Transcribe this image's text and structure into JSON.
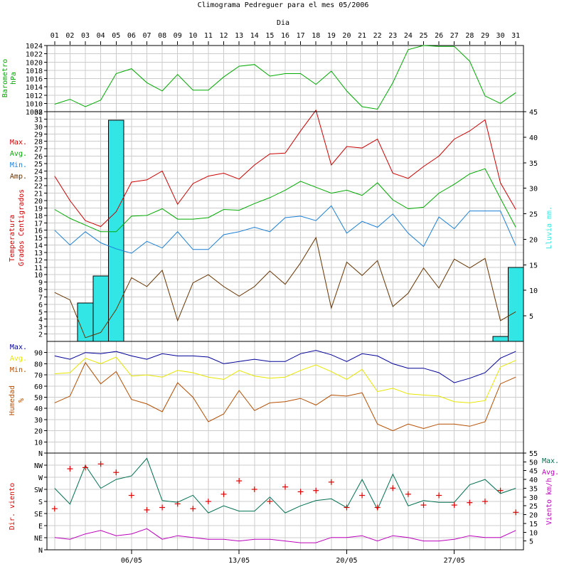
{
  "title": "Climograma Pedreguer para el mes 05/2006",
  "top_axis_label": "Dia",
  "days": [
    "01",
    "02",
    "03",
    "04",
    "05",
    "06",
    "07",
    "08",
    "09",
    "10",
    "11",
    "12",
    "13",
    "14",
    "15",
    "16",
    "17",
    "18",
    "19",
    "20",
    "21",
    "22",
    "23",
    "24",
    "25",
    "26",
    "27",
    "28",
    "29",
    "30",
    "31"
  ],
  "bottom_ticks": [
    {
      "label": "06/05",
      "day": 6
    },
    {
      "label": "13/05",
      "day": 13
    },
    {
      "label": "20/05",
      "day": 20
    },
    {
      "label": "27/05",
      "day": 27
    }
  ],
  "colors": {
    "grid": "#cccccc",
    "baro": "#00aa00",
    "tmax": "#cc0000",
    "tavg": "#00aa00",
    "tmin": "#1a7fd6",
    "tamp": "#663300",
    "rain": "#33e6e6",
    "hmax": "#000099",
    "havg": "#e6e600",
    "hmin": "#b34d00",
    "wmax": "#007050",
    "wavg": "#bb00bb",
    "wdir": "#dd0000"
  },
  "chart_data": [
    {
      "id": "barometer",
      "type": "line",
      "ylabel": [
        "Barometro",
        "hPa"
      ],
      "ylim": [
        1008,
        1024
      ],
      "yticks": [
        1008,
        1010,
        1012,
        1014,
        1016,
        1018,
        1020,
        1022,
        1024
      ],
      "series": [
        {
          "key": "baro",
          "values": [
            1009.8,
            1011.0,
            1009.2,
            1010.8,
            1017.2,
            1018.4,
            1015.0,
            1013.0,
            1017.0,
            1013.2,
            1013.2,
            1016.4,
            1019.0,
            1019.4,
            1016.6,
            1017.2,
            1017.2,
            1014.6,
            1017.8,
            1013.0,
            1009.2,
            1008.6,
            1015.0,
            1023.0,
            1024.0,
            1023.8,
            1023.8,
            1020.2,
            1011.8,
            1010.0,
            1012.6
          ]
        }
      ]
    },
    {
      "id": "temperature",
      "type": "line+bar",
      "legend": [
        "Max.",
        "Avg.",
        "Min.",
        "Amp."
      ],
      "ylabel": [
        "Temperatura",
        "Grados Centigrados"
      ],
      "ylim": [
        1,
        32
      ],
      "yticks": [
        2,
        3,
        4,
        5,
        6,
        7,
        8,
        9,
        10,
        11,
        12,
        13,
        14,
        15,
        16,
        17,
        18,
        19,
        20,
        21,
        22,
        23,
        24,
        25,
        26,
        27,
        28,
        29,
        30,
        31,
        32
      ],
      "y2label": "Lluvia mm.",
      "y2lim": [
        0,
        45
      ],
      "y2ticks": [
        5,
        10,
        15,
        20,
        25,
        30,
        35,
        40,
        45
      ],
      "series": [
        {
          "key": "tmax",
          "name": "Max.",
          "values": [
            23.3,
            20.0,
            17.3,
            16.5,
            18.5,
            22.5,
            22.8,
            24.0,
            19.5,
            22.3,
            23.3,
            23.7,
            22.9,
            24.8,
            26.3,
            26.4,
            29.4,
            32.2,
            24.8,
            27.3,
            27.1,
            28.3,
            23.7,
            23.0,
            24.6,
            26.0,
            28.3,
            29.4,
            30.9,
            22.4,
            18.8
          ]
        },
        {
          "key": "tavg",
          "name": "Avg.",
          "values": [
            18.8,
            17.6,
            16.7,
            15.8,
            15.8,
            17.9,
            18.0,
            18.9,
            17.5,
            17.5,
            17.7,
            18.8,
            18.7,
            19.6,
            20.4,
            21.4,
            22.6,
            21.8,
            21.0,
            21.4,
            20.7,
            22.4,
            20.1,
            18.9,
            19.1,
            21.0,
            22.2,
            23.6,
            24.3,
            20.3,
            16.4
          ]
        },
        {
          "key": "tmin",
          "name": "Min.",
          "values": [
            16.0,
            14.0,
            15.8,
            14.3,
            13.5,
            12.9,
            14.5,
            13.6,
            15.8,
            13.4,
            13.4,
            15.4,
            15.8,
            16.4,
            15.8,
            17.7,
            17.9,
            17.3,
            19.3,
            15.6,
            17.2,
            16.4,
            18.2,
            15.6,
            13.8,
            17.8,
            16.2,
            18.6,
            18.6,
            18.6,
            13.9
          ]
        },
        {
          "key": "tamp",
          "name": "Amp.",
          "values": [
            7.6,
            6.6,
            1.5,
            2.2,
            5.3,
            9.6,
            8.4,
            10.6,
            3.8,
            8.9,
            10.0,
            8.4,
            7.1,
            8.4,
            10.5,
            8.7,
            11.6,
            15.0,
            5.5,
            11.7,
            9.9,
            11.9,
            5.7,
            7.5,
            10.9,
            8.2,
            12.1,
            10.9,
            12.2,
            3.8,
            5.0
          ]
        }
      ],
      "rain": {
        "key": "rain",
        "name": "Lluvia mm.",
        "values": [
          0,
          0,
          7.5,
          12.8,
          43.3,
          0,
          0,
          0,
          0,
          0,
          0,
          0,
          0,
          0,
          0,
          0,
          0,
          0,
          0,
          0,
          0,
          0,
          0,
          0,
          0,
          0,
          0,
          0,
          0,
          1.0,
          14.5
        ]
      }
    },
    {
      "id": "humidity",
      "type": "line",
      "legend": [
        "Max.",
        "Avg.",
        "Min."
      ],
      "ylabel": [
        "Humedad",
        "%"
      ],
      "ylim": [
        0,
        100
      ],
      "yticks": [
        10,
        20,
        30,
        40,
        50,
        60,
        70,
        80,
        90
      ],
      "series": [
        {
          "key": "hmax",
          "name": "Max.",
          "values": [
            87,
            84,
            90,
            89,
            91,
            87,
            84,
            89,
            87,
            87,
            86,
            80,
            82,
            84,
            82,
            82,
            89,
            92,
            88,
            82,
            89,
            87,
            80,
            76,
            76,
            72,
            63,
            67,
            72,
            85,
            91
          ]
        },
        {
          "key": "havg",
          "name": "Avg.",
          "values": [
            71,
            72,
            85,
            80,
            86,
            69,
            70,
            68,
            74,
            72,
            68,
            66,
            74,
            69,
            67,
            68,
            74,
            79,
            73,
            66,
            75,
            55,
            58,
            53,
            52,
            51,
            46,
            45,
            47,
            77,
            83
          ]
        },
        {
          "key": "hmin",
          "name": "Min.",
          "values": [
            45,
            51,
            81,
            62,
            73,
            48,
            44,
            37,
            63,
            50,
            28,
            35,
            56,
            38,
            45,
            46,
            49,
            43,
            52,
            51,
            54,
            26,
            20,
            26,
            22,
            26,
            26,
            24,
            28,
            62,
            68
          ]
        }
      ]
    },
    {
      "id": "wind",
      "type": "line+scatter",
      "ylabel": "Dir. viento",
      "ylim": [
        0,
        8
      ],
      "ytick_labels": [
        "N",
        "NE",
        "E",
        "SE",
        "S",
        "SW",
        "W",
        "NW",
        "N"
      ],
      "y2legend": [
        "Max.",
        "Avg."
      ],
      "y2label": "Viento km/h",
      "y2lim": [
        0,
        55
      ],
      "y2ticks": [
        5,
        10,
        15,
        20,
        25,
        30,
        35,
        40,
        45,
        50,
        55
      ],
      "series": [
        {
          "key": "wmax",
          "name": "Max.",
          "values": [
            35,
            26,
            48,
            35,
            40,
            42,
            52,
            28,
            27,
            31,
            21,
            25,
            22,
            22,
            30,
            21,
            25,
            28,
            29,
            24,
            40,
            23,
            43,
            25,
            28,
            27,
            27,
            37,
            40,
            32,
            35
          ]
        },
        {
          "key": "wavg",
          "name": "Avg.",
          "values": [
            7,
            6,
            9,
            11,
            8,
            9,
            12,
            6,
            8,
            7,
            6,
            6,
            5,
            6,
            6,
            5,
            4,
            4,
            7,
            7,
            8,
            5,
            8,
            7,
            5,
            5,
            6,
            8,
            7,
            7,
            11
          ]
        }
      ],
      "direction": {
        "key": "wdir",
        "values": [
          3.4,
          6.7,
          6.8,
          7.1,
          6.4,
          4.5,
          3.3,
          3.5,
          3.8,
          3.4,
          4.0,
          4.6,
          5.7,
          5.0,
          4.0,
          5.2,
          4.8,
          4.9,
          5.6,
          3.5,
          4.5,
          3.5,
          5.1,
          4.6,
          3.7,
          4.5,
          3.7,
          3.9,
          4.0,
          4.9,
          3.1
        ]
      }
    }
  ]
}
